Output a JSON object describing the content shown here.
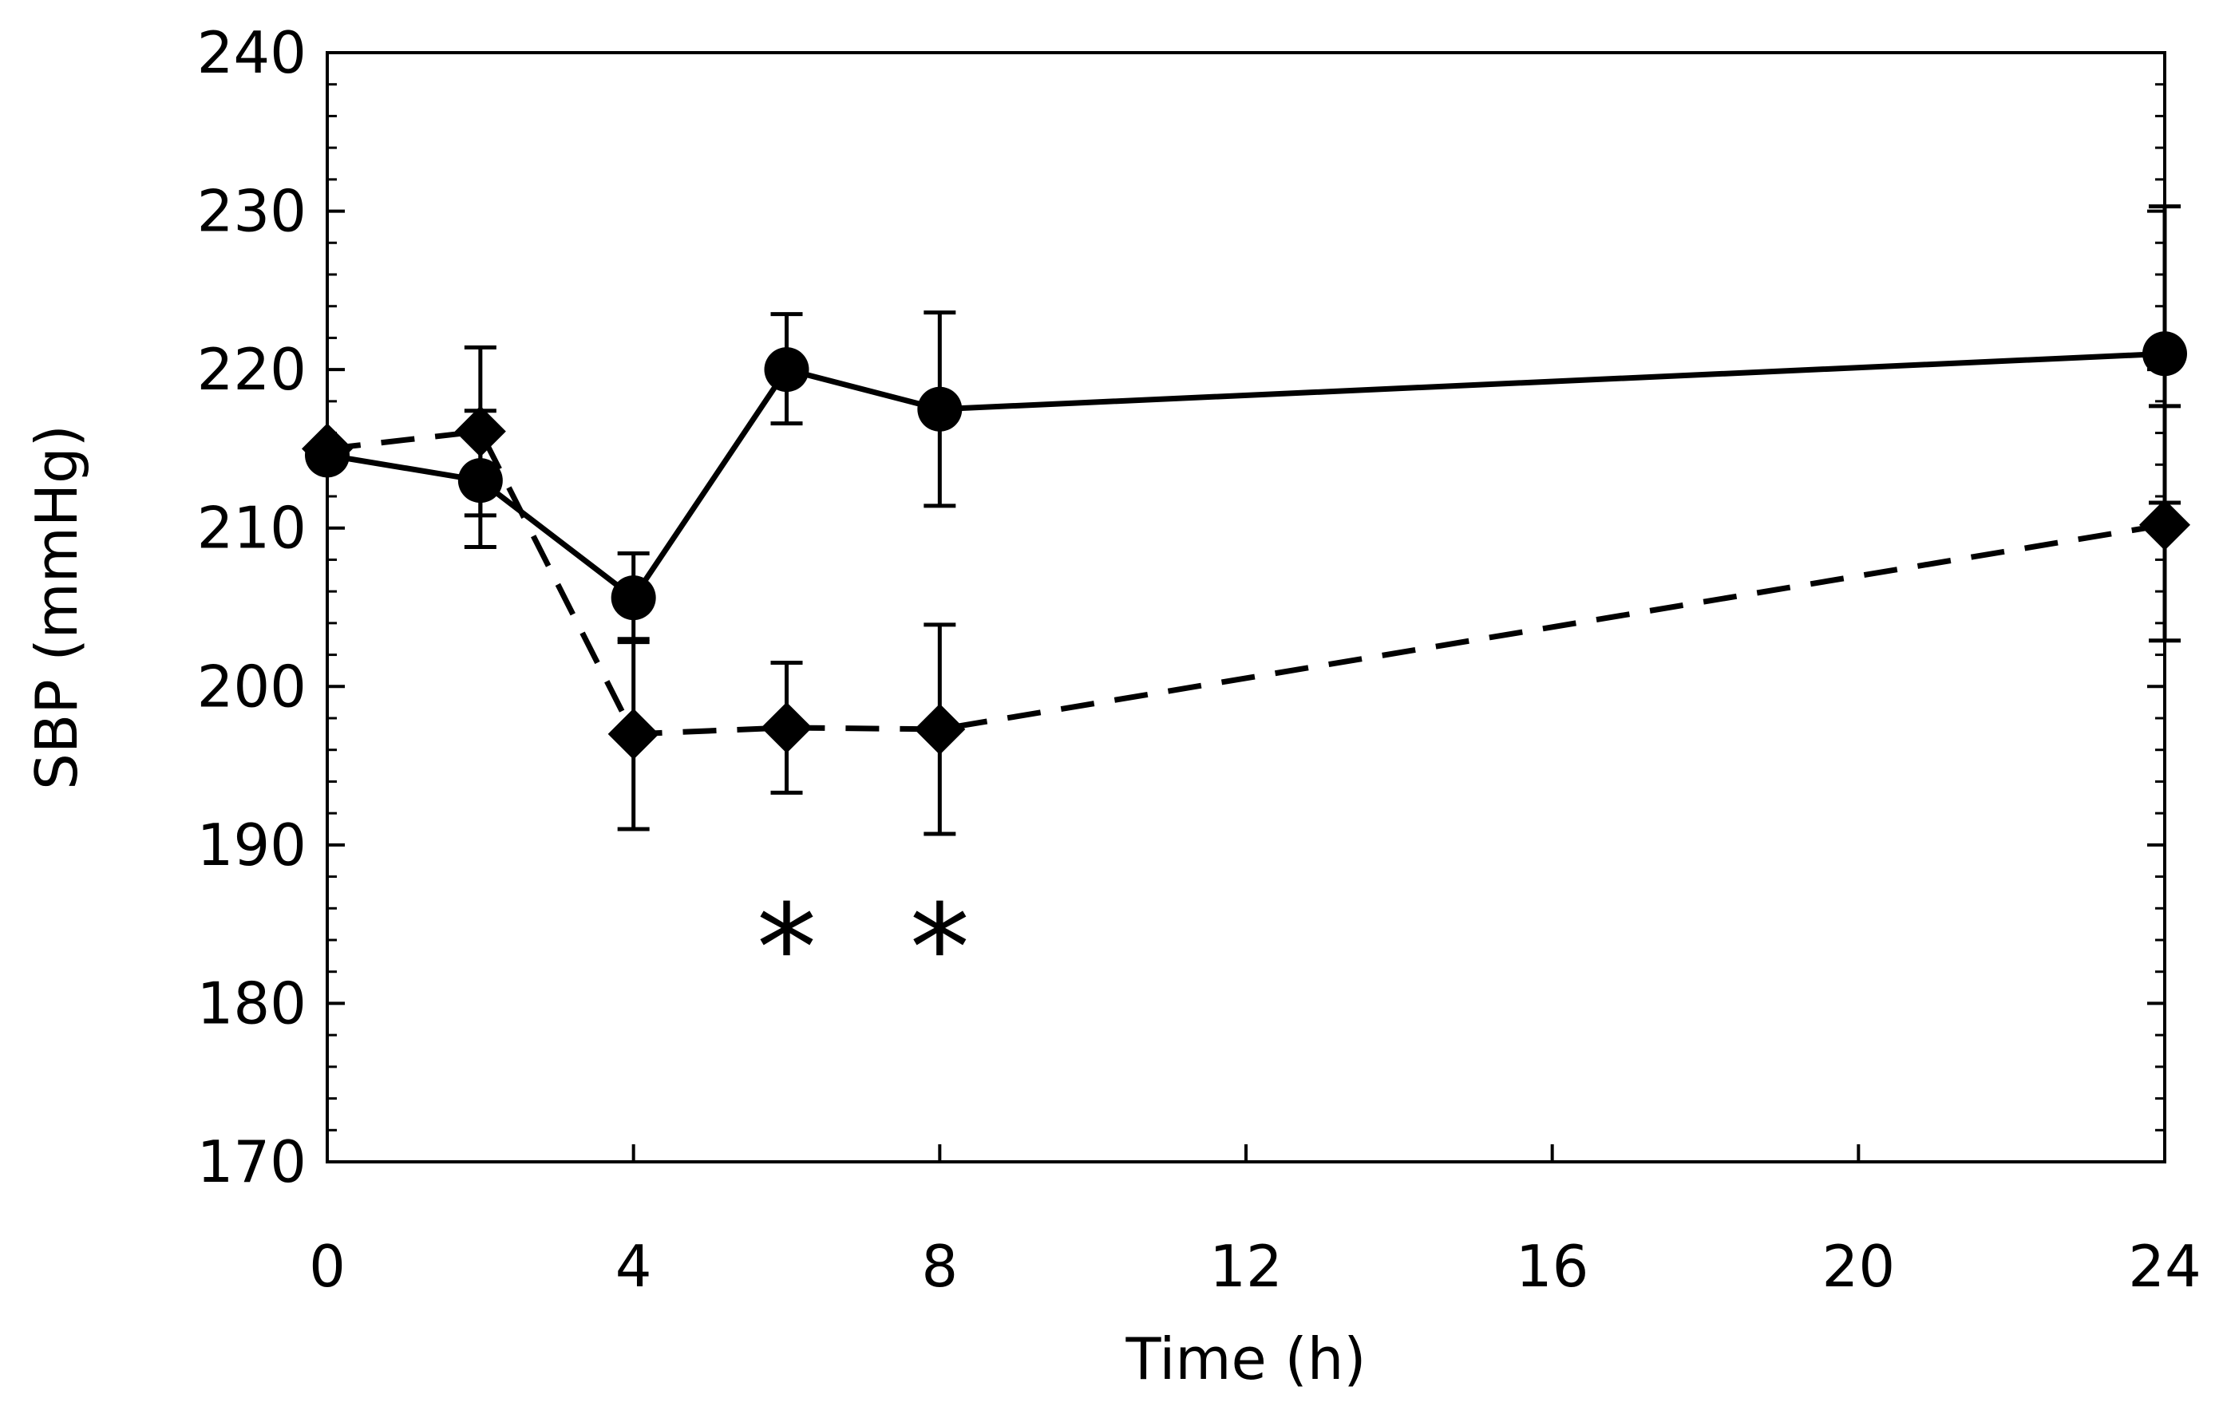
{
  "chart_data": {
    "type": "line",
    "title": "",
    "xlabel": "Time (h)",
    "ylabel": "SBP (mmHg)",
    "xlim": [
      0,
      24
    ],
    "ylim": [
      170,
      240
    ],
    "xticks": [
      0,
      4,
      8,
      12,
      16,
      20,
      24
    ],
    "xtick_labels": [
      "0",
      "4",
      "8",
      "12",
      "16",
      "20",
      "24"
    ],
    "yticks": [
      170,
      180,
      190,
      200,
      210,
      220,
      230,
      240
    ],
    "ytick_labels": [
      "170",
      "180",
      "190",
      "200",
      "210",
      "220",
      "230",
      "240"
    ],
    "grid": false,
    "series": [
      {
        "name": "circle-solid",
        "marker": "circle",
        "line_style": "solid",
        "x": [
          0,
          2,
          4,
          6,
          8,
          24
        ],
        "y": [
          214.6,
          213.0,
          205.6,
          220.0,
          217.5,
          221.0
        ],
        "error_upper": [
          null,
          217.4,
          208.4,
          223.5,
          223.6,
          230.3
        ],
        "error_lower": [
          null,
          208.8,
          202.8,
          216.6,
          211.4,
          211.6
        ]
      },
      {
        "name": "diamond-dashed",
        "marker": "diamond",
        "line_style": "dashed",
        "x": [
          0,
          2,
          4,
          6,
          8,
          24
        ],
        "y": [
          215.0,
          216.1,
          197.0,
          197.4,
          197.3,
          210.2
        ],
        "error_upper": [
          null,
          221.4,
          203.0,
          201.5,
          203.9,
          217.7
        ],
        "error_lower": [
          null,
          210.8,
          191.0,
          193.3,
          190.7,
          202.9
        ]
      }
    ],
    "annotations": [
      {
        "text": "*",
        "x": 6,
        "y": 184
      },
      {
        "text": "*",
        "x": 8,
        "y": 184
      }
    ]
  },
  "colors": {
    "ink": "#000000",
    "background": "#ffffff"
  }
}
